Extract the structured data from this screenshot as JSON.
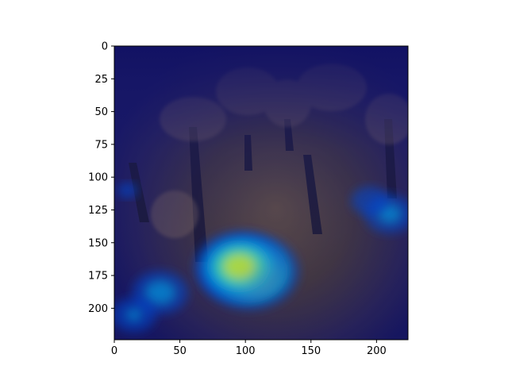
{
  "chart_data": {
    "type": "heatmap",
    "title": "",
    "xlabel": "",
    "ylabel": "",
    "xlim": [
      0,
      224
    ],
    "ylim": [
      224,
      0
    ],
    "x_ticks": [
      0,
      50,
      100,
      150,
      200
    ],
    "y_ticks": [
      0,
      25,
      50,
      75,
      100,
      125,
      150,
      175,
      200
    ],
    "x_tick_labels": [
      "0",
      "50",
      "100",
      "150",
      "200"
    ],
    "y_tick_labels": [
      "0",
      "25",
      "50",
      "75",
      "100",
      "125",
      "150",
      "175",
      "200"
    ],
    "grid": false,
    "colormap": "jet",
    "background_image": "underwater scene with sea anemones and their stalks",
    "hotspots": [
      {
        "x": 103,
        "y": 172,
        "intensity": 1.0
      },
      {
        "x": 95,
        "y": 168,
        "intensity": 0.85
      },
      {
        "x": 35,
        "y": 188,
        "intensity": 0.45
      },
      {
        "x": 15,
        "y": 205,
        "intensity": 0.35
      },
      {
        "x": 210,
        "y": 128,
        "intensity": 0.4
      },
      {
        "x": 195,
        "y": 118,
        "intensity": 0.3
      },
      {
        "x": 10,
        "y": 110,
        "intensity": 0.2
      }
    ]
  },
  "colors": {
    "overlay_base": "#1a1a7a",
    "axis": "#000000"
  }
}
